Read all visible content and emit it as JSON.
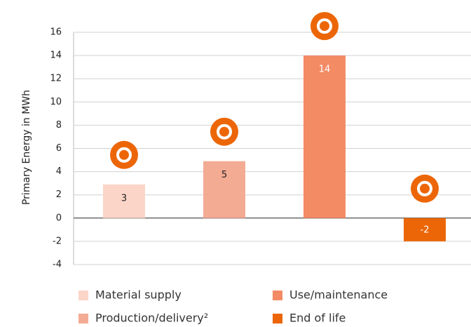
{
  "chart_data": {
    "type": "bar",
    "ylabel": "Primary Energy in MWh",
    "categories": [
      "Material supply",
      "Production/delivery²",
      "Use/maintenance",
      "End of life"
    ],
    "values": [
      2.9,
      4.9,
      14,
      -2
    ],
    "value_labels": [
      "3",
      "5",
      "14",
      "-2"
    ],
    "colors": [
      "#fbd5c8",
      "#f4ab93",
      "#f38b65",
      "#ec6608"
    ],
    "ylim": [
      -4,
      16
    ],
    "yticks": [
      -4,
      -2,
      0,
      2,
      4,
      6,
      8,
      10,
      12,
      14,
      16
    ],
    "grid": true
  }
}
